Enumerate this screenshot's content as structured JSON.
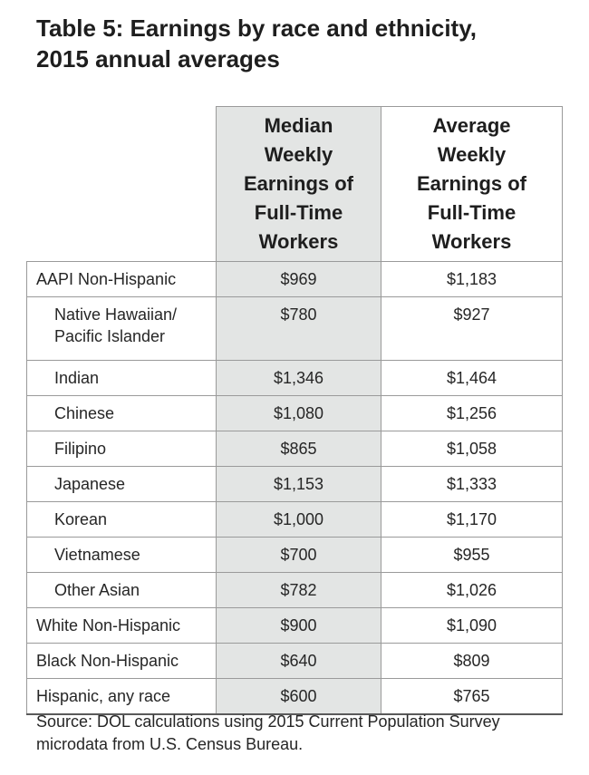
{
  "title": {
    "line1": "Table 5: Earnings by race and ethnicity,",
    "line2": "2015 annual averages"
  },
  "columns": {
    "median": [
      "Median",
      "Weekly",
      "Earnings of",
      "Full-Time",
      "Workers"
    ],
    "average": [
      "Average",
      "Weekly",
      "Earnings of",
      "Full-Time",
      "Workers"
    ]
  },
  "rows": [
    {
      "label": "AAPI Non-Hispanic",
      "median": "$969",
      "average": "$1,183"
    },
    {
      "label_line1": "Native Hawaiian/",
      "label_line2": "Pacific Islander",
      "median": "$780",
      "average": "$927"
    },
    {
      "label": "Indian",
      "median": "$1,346",
      "average": "$1,464"
    },
    {
      "label": "Chinese",
      "median": "$1,080",
      "average": "$1,256"
    },
    {
      "label": "Filipino",
      "median": "$865",
      "average": "$1,058"
    },
    {
      "label": "Japanese",
      "median": "$1,153",
      "average": "$1,333"
    },
    {
      "label": "Korean",
      "median": "$1,000",
      "average": "$1,170"
    },
    {
      "label": "Vietnamese",
      "median": "$700",
      "average": "$955"
    },
    {
      "label": "Other Asian",
      "median": "$782",
      "average": "$1,026"
    },
    {
      "label": "White Non-Hispanic",
      "median": "$900",
      "average": "$1,090"
    },
    {
      "label": "Black Non-Hispanic",
      "median": "$640",
      "average": "$809"
    },
    {
      "label": "Hispanic, any race",
      "median": "$600",
      "average": "$765"
    }
  ],
  "source": {
    "line1": "Source: DOL calculations using 2015 Current Population Survey",
    "line2": "microdata from U.S. Census Bureau."
  },
  "colors": {
    "shaded_column": "#e3e5e4",
    "text": "#1e1e1e",
    "rule": "#9a9a9a"
  }
}
